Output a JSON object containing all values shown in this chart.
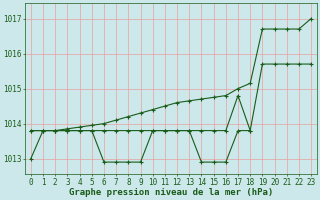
{
  "title": "Graphe pression niveau de la mer (hPa)",
  "bg_color": "#cce8ea",
  "grid_color": "#e8a0a0",
  "line_color": "#1a5c1a",
  "text_color": "#1a5c1a",
  "ylim": [
    1012.55,
    1017.45
  ],
  "yticks": [
    1013,
    1014,
    1015,
    1016,
    1017
  ],
  "xlim": [
    -0.5,
    23.5
  ],
  "title_fontsize": 6.5,
  "tick_fontsize": 5.5,
  "s1_x": [
    0,
    1,
    2,
    3,
    4,
    5,
    6,
    7,
    8,
    9,
    10,
    11,
    12,
    13,
    14,
    15,
    16,
    17,
    18
  ],
  "s1_y": [
    1013.0,
    1013.8,
    1013.8,
    1013.8,
    1013.8,
    1013.8,
    1012.9,
    1012.9,
    1012.9,
    1012.9,
    1013.8,
    1013.8,
    1013.8,
    1013.8,
    1012.9,
    1012.9,
    1012.9,
    1013.8,
    1013.8
  ],
  "s2_x": [
    0,
    1,
    2,
    3,
    4,
    5,
    6,
    7,
    8,
    9,
    10,
    11,
    12,
    13,
    14,
    15,
    16,
    17,
    18,
    19,
    20,
    21,
    22,
    23
  ],
  "s2_y": [
    1013.8,
    1013.8,
    1013.8,
    1013.8,
    1013.8,
    1013.8,
    1013.8,
    1013.8,
    1013.8,
    1013.8,
    1013.8,
    1013.8,
    1013.8,
    1013.8,
    1013.8,
    1013.8,
    1013.8,
    1014.8,
    1013.8,
    1015.7,
    1015.7,
    1015.7,
    1015.7,
    1015.7
  ],
  "s3_x": [
    0,
    1,
    2,
    3,
    4,
    5,
    6,
    7,
    8,
    9,
    10,
    11,
    12,
    13,
    14,
    15,
    16,
    17,
    18,
    19,
    20,
    21,
    22,
    23
  ],
  "s3_y": [
    1013.8,
    1013.8,
    1013.8,
    1013.85,
    1013.9,
    1013.95,
    1014.0,
    1014.1,
    1014.2,
    1014.3,
    1014.4,
    1014.5,
    1014.6,
    1014.65,
    1014.7,
    1014.75,
    1014.8,
    1015.0,
    1015.15,
    1016.7,
    1016.7,
    1016.7,
    1016.7,
    1017.0
  ]
}
